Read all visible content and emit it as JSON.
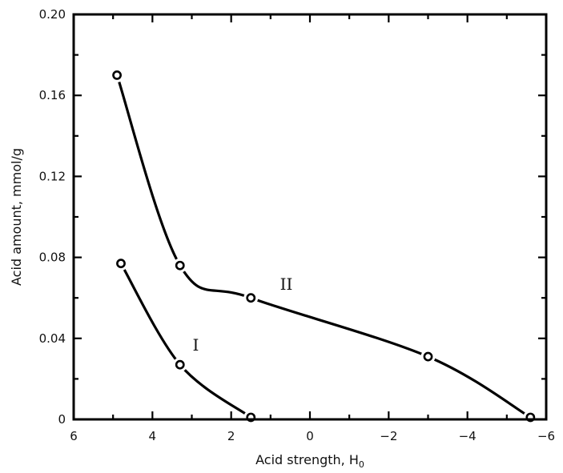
{
  "chart_data": {
    "type": "line",
    "xlabel": "Acid strength, H",
    "xlabel_sub": "0",
    "ylabel": "Acid amount, mmol/g",
    "xlim": [
      6,
      -6
    ],
    "ylim": [
      0,
      0.2
    ],
    "x_ticks": [
      6,
      4,
      2,
      0,
      -2,
      -4,
      -6
    ],
    "x_tick_labels": [
      "6",
      "4",
      "2",
      "0",
      "−2",
      "−4",
      "−6"
    ],
    "y_ticks": [
      0,
      0.04,
      0.08,
      0.12,
      0.16,
      0.2
    ],
    "y_tick_labels": [
      "0",
      "0.04",
      "0.08",
      "0.12",
      "0.16",
      "0.20"
    ],
    "grid": false,
    "series": [
      {
        "name": "I",
        "x": [
          4.8,
          3.3,
          1.5
        ],
        "y": [
          0.077,
          0.027,
          0.001
        ]
      },
      {
        "name": "II",
        "x": [
          4.9,
          3.3,
          1.5,
          -3.0,
          -5.6
        ],
        "y": [
          0.17,
          0.076,
          0.06,
          0.031,
          0.001
        ]
      }
    ],
    "annotations": [
      {
        "text": "I",
        "x": 2.9,
        "y": 0.034
      },
      {
        "text": "II",
        "x": 0.6,
        "y": 0.064
      }
    ]
  }
}
